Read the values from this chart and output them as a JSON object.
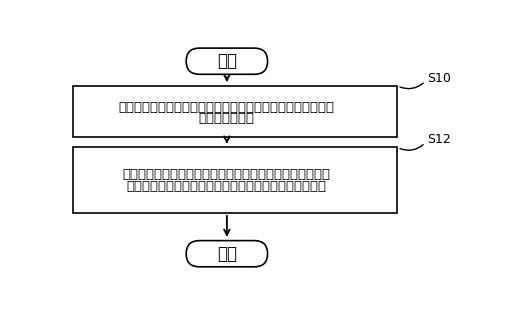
{
  "bg_color": "#ffffff",
  "border_color": "#000000",
  "text_color": "#000000",
  "start_text": "开始",
  "end_text": "结束",
  "box1_line1": "在温度扩展模块上电时，自动识别连接在所述温度扩展模块上",
  "box1_line2": "的热电偶的类型",
  "box2_line1": "根据所述识别的热电偶的类型，获得所述类型所对应的分度",
  "box2_line2": "表，利用所述热电偶以及所述分度表对测量对象进行测温",
  "label1": "S10",
  "label2": "S12",
  "font_size_main": 9.5,
  "font_size_label": 9,
  "font_size_startend": 12
}
